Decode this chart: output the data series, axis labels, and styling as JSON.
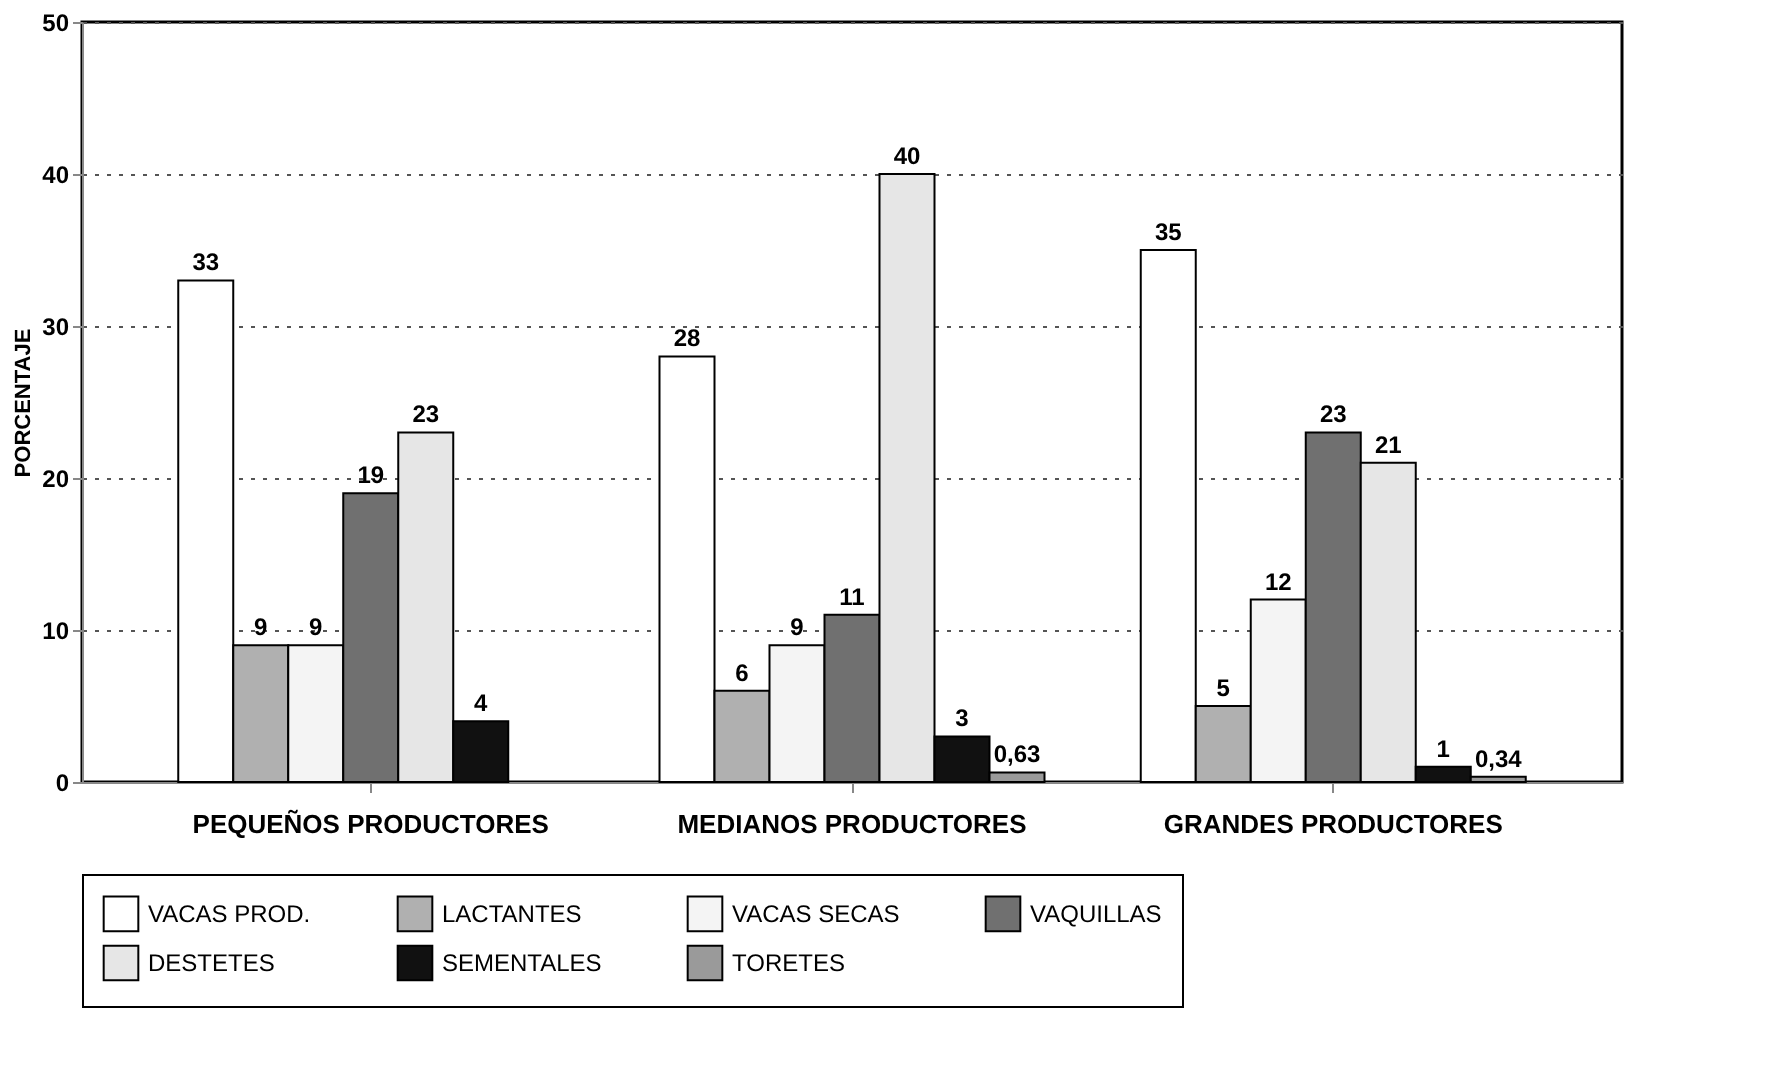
{
  "chart_data": {
    "type": "bar",
    "ylabel": "PORCENTAJE",
    "categories": [
      "PEQUEÑOS PRODUCTORES",
      "MEDIANOS PRODUCTORES",
      "GRANDES PRODUCTORES"
    ],
    "series": [
      {
        "name": "VACAS PROD.",
        "color": "#ffffff",
        "values": [
          33,
          28,
          35
        ],
        "value_labels": [
          "33",
          "28",
          "35"
        ]
      },
      {
        "name": "LACTANTES",
        "color": "#b0b0b0",
        "values": [
          9,
          6,
          5
        ],
        "value_labels": [
          "9",
          "6",
          "5"
        ]
      },
      {
        "name": "VACAS SECAS",
        "color": "#f4f4f4",
        "values": [
          9,
          9,
          12
        ],
        "value_labels": [
          "9",
          "9",
          "12"
        ]
      },
      {
        "name": "VAQUILLAS",
        "color": "#707070",
        "values": [
          19,
          11,
          23
        ],
        "value_labels": [
          "19",
          "11",
          "23"
        ]
      },
      {
        "name": "DESTETES",
        "color": "#e6e6e6",
        "values": [
          23,
          40,
          21
        ],
        "value_labels": [
          "23",
          "40",
          "21"
        ]
      },
      {
        "name": "SEMENTALES",
        "color": "#111111",
        "values": [
          4,
          3,
          1
        ],
        "value_labels": [
          "4",
          "3",
          "1"
        ]
      },
      {
        "name": "TORETES",
        "color": "#9a9a9a",
        "values": [
          null,
          0.63,
          0.34
        ],
        "value_labels": [
          null,
          "0,63",
          "0,34"
        ]
      }
    ],
    "ylim": [
      0,
      50
    ],
    "yticks": [
      0,
      10,
      20,
      30,
      40,
      50
    ],
    "grid": "y",
    "legend": "bottom"
  }
}
